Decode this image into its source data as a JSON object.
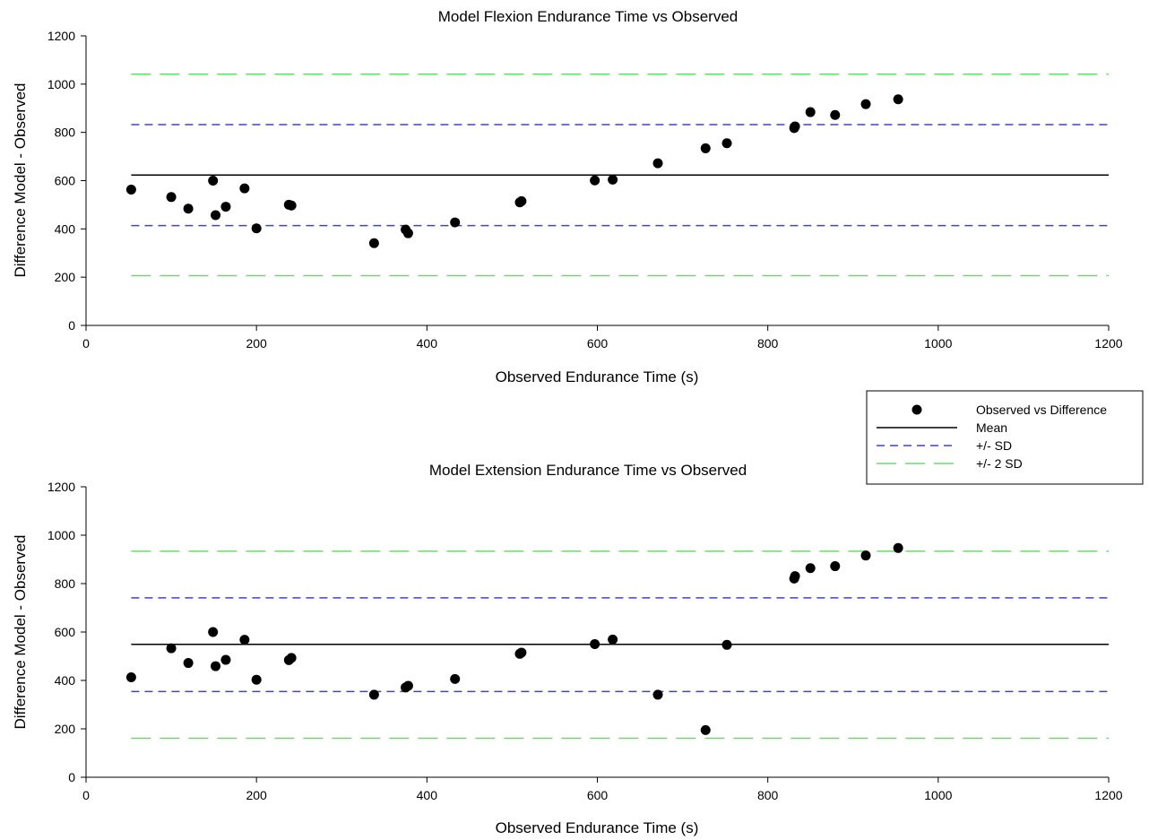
{
  "chart_data": [
    {
      "type": "scatter",
      "title": "Model Flexion Endurance Time vs Observed",
      "xlabel": "Observed Endurance Time (s)",
      "ylabel": "Difference Model - Observed",
      "xlim": [
        0,
        1200
      ],
      "ylim": [
        0,
        1200
      ],
      "xticks": [
        "0",
        "200",
        "400",
        "600",
        "800",
        "1000",
        "1200"
      ],
      "yticks": [
        "0",
        "200",
        "400",
        "600",
        "800",
        "1000",
        "1200"
      ],
      "grid": false,
      "series": [
        {
          "name": "Observed vs Difference",
          "x": [
            53,
            100,
            120,
            149,
            152,
            164,
            186,
            200,
            238,
            241,
            338,
            375,
            378,
            433,
            509,
            511,
            597,
            618,
            671,
            727,
            752,
            831,
            832,
            850,
            879,
            915,
            953
          ],
          "y": [
            563,
            532,
            484,
            600,
            457,
            492,
            568,
            402,
            500,
            497,
            341,
            397,
            382,
            427,
            510,
            515,
            601,
            604,
            672,
            734,
            755,
            818,
            825,
            884,
            872,
            917,
            937
          ]
        }
      ],
      "reference_lines": {
        "mean": 623,
        "plus_sd": 832,
        "minus_sd": 414,
        "plus_2sd": 1041,
        "minus_2sd": 206
      }
    },
    {
      "type": "scatter",
      "title": "Model Extension Endurance Time vs Observed",
      "xlabel": "Observed Endurance Time (s)",
      "ylabel": "Difference Model - Observed",
      "xlim": [
        0,
        1200
      ],
      "ylim": [
        0,
        1200
      ],
      "xticks": [
        "0",
        "200",
        "400",
        "600",
        "800",
        "1000",
        "1200"
      ],
      "yticks": [
        "0",
        "200",
        "400",
        "600",
        "800",
        "1000",
        "1200"
      ],
      "grid": false,
      "series": [
        {
          "name": "Observed vs Difference",
          "x": [
            53,
            100,
            120,
            149,
            152,
            164,
            186,
            200,
            238,
            241,
            338,
            375,
            378,
            433,
            509,
            511,
            597,
            618,
            671,
            727,
            752,
            831,
            832,
            850,
            879,
            915,
            953
          ],
          "y": [
            413,
            533,
            472,
            600,
            459,
            485,
            568,
            403,
            484,
            493,
            341,
            371,
            378,
            406,
            510,
            515,
            550,
            569,
            341,
            195,
            547,
            821,
            831,
            864,
            872,
            916,
            947
          ]
        }
      ],
      "reference_lines": {
        "mean": 549,
        "plus_sd": 741,
        "minus_sd": 354,
        "plus_2sd": 934,
        "minus_2sd": 161
      }
    }
  ],
  "legend": {
    "placement": "right, between plots",
    "entries": [
      {
        "label": "Observed vs Difference",
        "style": "marker"
      },
      {
        "label": "Mean",
        "style": "solid"
      },
      {
        "label": "+/- SD",
        "style": "dash"
      },
      {
        "label": "+/- 2 SD",
        "style": "longdash"
      }
    ]
  },
  "colors": {
    "points": "#000000",
    "mean": "#000000",
    "sd": "#4444bb",
    "sd2": "#66dd66",
    "axis": "#000000"
  }
}
